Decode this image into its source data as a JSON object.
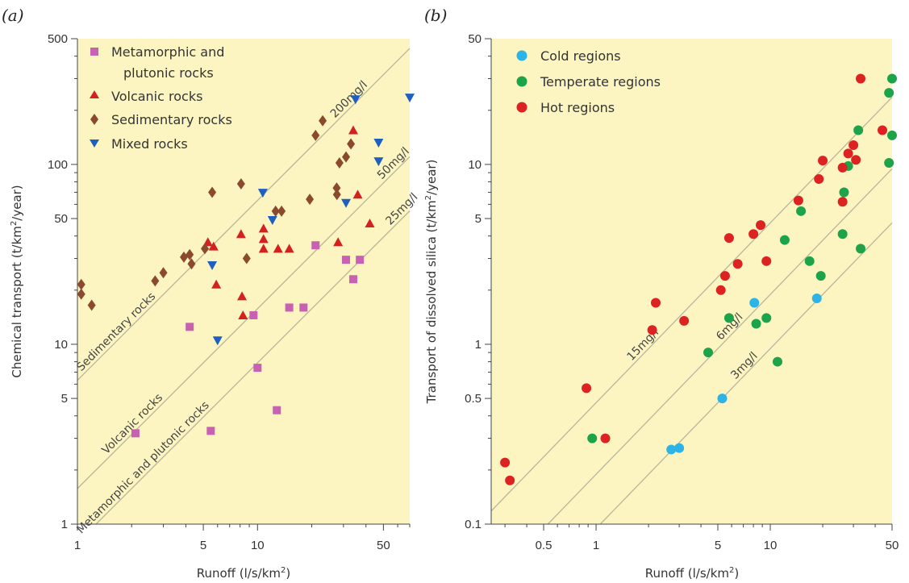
{
  "chart_data": [
    {
      "type": "scatter",
      "panel_label": "(a)",
      "xlabel": "Runoff (l/s/km²)",
      "ylabel": "Chemical transport (t/km²/year)",
      "xscale": "log",
      "yscale": "log",
      "xlim": [
        1,
        70
      ],
      "ylim": [
        1,
        500
      ],
      "xticks": [
        1,
        5,
        10,
        50
      ],
      "yticks": [
        1,
        5,
        10,
        50,
        100,
        500
      ],
      "legend_position": "top-left",
      "background": "#fcf5c1",
      "series": [
        {
          "name": "Metamorphic and plutonic rocks",
          "marker": "square",
          "color": "#c861b2",
          "points": [
            [
              2.1,
              3.2
            ],
            [
              4.2,
              12.5
            ],
            [
              5.5,
              3.3
            ],
            [
              9.5,
              14.5
            ],
            [
              10,
              7.4
            ],
            [
              12.8,
              4.3
            ],
            [
              15,
              16
            ],
            [
              18,
              16
            ],
            [
              21,
              35.5
            ],
            [
              31,
              29.5
            ],
            [
              34,
              23
            ],
            [
              37,
              29.5
            ]
          ]
        },
        {
          "name": "Volcanic rocks",
          "marker": "triangle-up",
          "color": "#d32121",
          "points": [
            [
              5.3,
              37
            ],
            [
              5.7,
              35
            ],
            [
              5.9,
              21.5
            ],
            [
              8.1,
              41
            ],
            [
              8.2,
              18.5
            ],
            [
              8.3,
              14.5
            ],
            [
              10.8,
              44
            ],
            [
              10.8,
              38.5
            ],
            [
              10.8,
              34
            ],
            [
              13,
              34
            ],
            [
              15,
              34
            ],
            [
              28,
              37
            ],
            [
              34,
              155
            ],
            [
              36,
              68
            ],
            [
              42,
              47
            ]
          ]
        },
        {
          "name": "Sedimentary rocks",
          "marker": "diamond",
          "color": "#8b4a2d",
          "points": [
            [
              1.05,
              21.5
            ],
            [
              1.05,
              19
            ],
            [
              1.2,
              16.5
            ],
            [
              2.7,
              22.5
            ],
            [
              3,
              25
            ],
            [
              3.9,
              30.5
            ],
            [
              4.2,
              31.5
            ],
            [
              4.3,
              28
            ],
            [
              5.1,
              34
            ],
            [
              5.6,
              70
            ],
            [
              8.1,
              78
            ],
            [
              8.7,
              30
            ],
            [
              12.6,
              55
            ],
            [
              13.6,
              55
            ],
            [
              19.5,
              64
            ],
            [
              21,
              145
            ],
            [
              23,
              175
            ],
            [
              27.5,
              74
            ],
            [
              27.6,
              68
            ],
            [
              28.5,
              102
            ],
            [
              31,
              110
            ],
            [
              33,
              130
            ]
          ]
        },
        {
          "name": "Mixed rocks",
          "marker": "triangle-down",
          "color": "#1f5fc1",
          "points": [
            [
              5.6,
              27.5
            ],
            [
              6,
              10.5
            ],
            [
              10.7,
              69.5
            ],
            [
              12.1,
              49
            ],
            [
              31,
              61
            ],
            [
              35,
              230
            ],
            [
              47,
              132
            ],
            [
              47,
              104
            ],
            [
              70,
              235
            ]
          ]
        }
      ],
      "reference_lines": [
        {
          "label": "200mg/l",
          "concentration_mg_per_l": 200
        },
        {
          "label": "50mg/l",
          "concentration_mg_per_l": 50
        },
        {
          "label": "25mg/l",
          "concentration_mg_per_l": 25
        }
      ],
      "annotations": [
        "Sedimentary rocks",
        "Volcanic rocks",
        "Metamorphic and plutonic rocks"
      ]
    },
    {
      "type": "scatter",
      "panel_label": "(b)",
      "xlabel": "Runoff (l/s/km²)",
      "ylabel": "Transport of dissolved silica (t/km²/year)",
      "xscale": "log",
      "yscale": "log",
      "xlim": [
        0.25,
        50
      ],
      "ylim": [
        0.1,
        50
      ],
      "xticks": [
        0.5,
        1,
        5,
        10,
        50
      ],
      "yticks": [
        0.1,
        0.5,
        1,
        5,
        10,
        50
      ],
      "legend_position": "top-left",
      "background": "#fcf5c1",
      "series": [
        {
          "name": "Cold regions",
          "marker": "circle",
          "color": "#2db3e6",
          "points": [
            [
              2.7,
              0.26
            ],
            [
              3.0,
              0.265
            ],
            [
              5.3,
              0.5
            ],
            [
              8.1,
              1.7
            ],
            [
              18.5,
              1.8
            ]
          ]
        },
        {
          "name": "Temperate regions",
          "marker": "circle",
          "color": "#1da34a",
          "points": [
            [
              0.95,
              0.3
            ],
            [
              4.4,
              0.9
            ],
            [
              5.8,
              1.4
            ],
            [
              8.3,
              1.3
            ],
            [
              9.5,
              1.4
            ],
            [
              11,
              0.8
            ],
            [
              12.1,
              3.8
            ],
            [
              15,
              5.5
            ],
            [
              16.8,
              2.9
            ],
            [
              19.5,
              2.4
            ],
            [
              26,
              4.1
            ],
            [
              26.5,
              7.0
            ],
            [
              28,
              9.8
            ],
            [
              32,
              15.5
            ],
            [
              33,
              3.4
            ],
            [
              48,
              25
            ],
            [
              48,
              10.2
            ],
            [
              50,
              30
            ],
            [
              50,
              14.5
            ]
          ]
        },
        {
          "name": "Hot regions",
          "marker": "circle",
          "color": "#dd2222",
          "points": [
            [
              0.3,
              0.22
            ],
            [
              0.32,
              0.175
            ],
            [
              0.88,
              0.57
            ],
            [
              1.13,
              0.3
            ],
            [
              2.1,
              1.2
            ],
            [
              2.2,
              1.7
            ],
            [
              3.2,
              1.35
            ],
            [
              5.2,
              2.0
            ],
            [
              5.5,
              2.4
            ],
            [
              5.8,
              3.9
            ],
            [
              6.5,
              2.8
            ],
            [
              8,
              4.1
            ],
            [
              8.8,
              4.6
            ],
            [
              9.5,
              2.9
            ],
            [
              14.5,
              6.3
            ],
            [
              19,
              8.3
            ],
            [
              20,
              10.5
            ],
            [
              26,
              9.6
            ],
            [
              26,
              6.2
            ],
            [
              28,
              11.5
            ],
            [
              30,
              12.8
            ],
            [
              31,
              10.6
            ],
            [
              33,
              30
            ],
            [
              44,
              15.5
            ]
          ]
        }
      ],
      "reference_lines": [
        {
          "label": "15mg/l",
          "concentration_mg_per_l": 15
        },
        {
          "label": "6mg/l",
          "concentration_mg_per_l": 6
        },
        {
          "label": "3mg/l",
          "concentration_mg_per_l": 3
        }
      ]
    }
  ],
  "axis_text": {
    "a_ylabel_main": "Chemical transport (t/km",
    "a_ylabel_sup": "2",
    "a_ylabel_end": "/year)",
    "b_ylabel_main": "Transport of dissolved silica (t/km",
    "b_ylabel_sup": "2",
    "b_ylabel_end": "/year)",
    "xlabel_main": "Runoff (l/s/km",
    "xlabel_sup": "2",
    "xlabel_end": ")"
  },
  "legend_a": [
    "Metamorphic and",
    "plutonic rocks",
    "Volcanic rocks",
    "Sedimentary rocks",
    "Mixed rocks"
  ],
  "legend_b": [
    "Cold regions",
    "Temperate regions",
    "Hot regions"
  ]
}
